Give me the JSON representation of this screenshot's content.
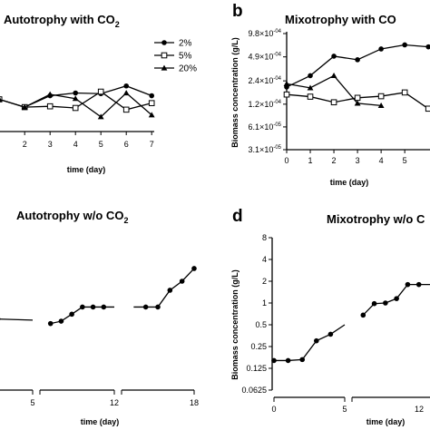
{
  "colors": {
    "ink": "#000000",
    "background": "#ffffff"
  },
  "chart_data": [
    {
      "id": "a",
      "panel_letter": "",
      "type": "line",
      "title_main": "Autotrophy with CO",
      "title_sub": "2",
      "xlabel": "time (day)",
      "ylabel": "",
      "x_ticks": [
        "2",
        "3",
        "4",
        "5",
        "6",
        "7"
      ],
      "xlim": [
        1.1,
        7.1
      ],
      "y_scale": "log2",
      "ylim": [
        0.06,
        0.2
      ],
      "legend_position": "top-right",
      "series": [
        {
          "name": "2%",
          "marker": "circle-filled",
          "x": [
            1,
            2,
            3,
            4,
            5,
            6,
            7
          ],
          "y": [
            0.095,
            0.085,
            0.1,
            0.104,
            0.103,
            0.115,
            0.1
          ]
        },
        {
          "name": "5%",
          "marker": "square-open",
          "x": [
            1,
            2,
            3,
            4,
            5,
            6,
            7
          ],
          "y": [
            0.095,
            0.085,
            0.086,
            0.084,
            0.106,
            0.082,
            0.09
          ]
        },
        {
          "name": "20%",
          "marker": "triangle-filled",
          "x": [
            1,
            2,
            3,
            4,
            5,
            6,
            7
          ],
          "y": [
            0.095,
            0.085,
            0.102,
            0.096,
            0.074,
            0.104,
            0.076
          ]
        }
      ]
    },
    {
      "id": "b",
      "panel_letter": "b",
      "type": "line",
      "title_main": "Mixotrophy with CO",
      "title_sub": "",
      "xlabel": "time (day)",
      "ylabel": "Biomass concentration (g/L)",
      "x_ticks": [
        "0",
        "1",
        "2",
        "3",
        "4",
        "5"
      ],
      "xlim": [
        0,
        6.3
      ],
      "y_scale": "log2",
      "ylim": [
        3.1e-05,
        0.00098
      ],
      "y_ticks": [
        {
          "value": 0.00098,
          "label": "9.8×10",
          "exp": "-04"
        },
        {
          "value": 0.00049,
          "label": "4.9×10",
          "exp": "-04"
        },
        {
          "value": 0.00024,
          "label": "2.4×10",
          "exp": "-04"
        },
        {
          "value": 0.00012,
          "label": "1.2×10",
          "exp": "-04"
        },
        {
          "value": 6.1e-05,
          "label": "6.1×10",
          "exp": "-05"
        },
        {
          "value": 3.1e-05,
          "label": "3.1×10",
          "exp": "-05"
        }
      ],
      "series": [
        {
          "name": "2%",
          "marker": "circle-filled",
          "x": [
            0,
            1,
            2,
            3,
            4,
            5,
            6
          ],
          "y": [
            0.0002,
            0.00028,
            0.0005,
            0.00045,
            0.00062,
            0.0007,
            0.00066
          ]
        },
        {
          "name": "5%",
          "marker": "square-open",
          "x": [
            0,
            1,
            2,
            3,
            4,
            5,
            6
          ],
          "y": [
            0.00016,
            0.00015,
            0.000127,
            0.000145,
            0.000152,
            0.00017,
            0.000105
          ]
        },
        {
          "name": "20%",
          "marker": "triangle-filled",
          "x": [
            0,
            1,
            2,
            3,
            4
          ],
          "y": [
            0.00022,
            0.000195,
            0.00028,
            0.000123,
            0.000115
          ]
        }
      ]
    },
    {
      "id": "c",
      "panel_letter": "",
      "type": "line",
      "title_main": "Autotrophy w/o CO",
      "title_sub": "2",
      "xlabel": "time (day)",
      "ylabel": "",
      "x_ticks": [
        "5",
        "12",
        "18"
      ],
      "y_scale": "log2",
      "ylim": [
        0.0625,
        8
      ],
      "segments": [
        {
          "x": [
            3,
            5
          ],
          "y": [
            0.6,
            0.58
          ]
        },
        {
          "x": [
            6,
            7,
            8,
            9,
            10,
            11,
            12
          ],
          "y": [
            0.52,
            0.56,
            0.7,
            0.88,
            0.88,
            0.88,
            0.88
          ]
        },
        {
          "x": [
            13,
            14,
            15,
            16,
            17,
            18
          ],
          "y": [
            0.88,
            0.88,
            0.88,
            1.5,
            2.0,
            3.0
          ]
        }
      ]
    },
    {
      "id": "d",
      "panel_letter": "d",
      "type": "line",
      "title_main": "Mixotrophy w/o C",
      "title_sub": "",
      "xlabel": "time (day)",
      "ylabel": "Biomass concentration (g/L)",
      "x_ticks": [
        "0",
        "5",
        "12"
      ],
      "y_scale": "log2",
      "ylim": [
        0.0625,
        8
      ],
      "y_ticks": [
        {
          "value": 8,
          "label": "8"
        },
        {
          "value": 4,
          "label": "4"
        },
        {
          "value": 2,
          "label": "2"
        },
        {
          "value": 1,
          "label": "1"
        },
        {
          "value": 0.5,
          "label": "0.5"
        },
        {
          "value": 0.25,
          "label": "0.25"
        },
        {
          "value": 0.125,
          "label": "0.125"
        },
        {
          "value": 0.0625,
          "label": "0.0625"
        }
      ],
      "segments": [
        {
          "x": [
            0,
            1,
            2,
            3,
            4,
            5
          ],
          "y": [
            0.16,
            0.16,
            0.165,
            0.3,
            0.37,
            0.5
          ]
        },
        {
          "x": [
            6,
            7,
            8,
            9,
            10,
            11,
            12
          ],
          "y": [
            0.68,
            0.98,
            1.0,
            1.15,
            1.8,
            1.8,
            1.8
          ]
        }
      ]
    }
  ]
}
